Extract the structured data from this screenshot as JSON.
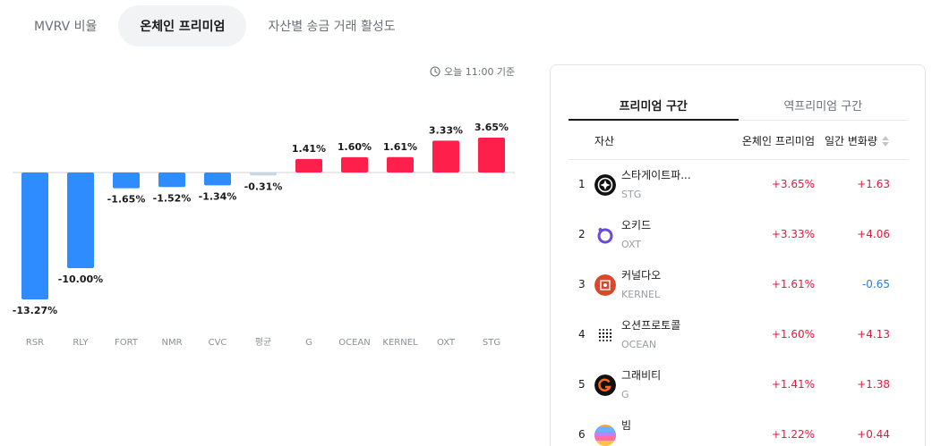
{
  "top_tabs": [
    {
      "label": "MVRV 비율"
    },
    {
      "label": "온체인 프리미엄"
    },
    {
      "label": "자산별 송금 거래 활성도"
    }
  ],
  "timestamp": "오늘 11:00 기준",
  "colors": {
    "positive": "#ff1f4b",
    "negative": "#2f8cff",
    "average": "#c9d6e3",
    "positive_text": "#e0193f",
    "negative_text": "#2a7fd8"
  },
  "chart_data": {
    "type": "bar",
    "categories": [
      "RSR",
      "RLY",
      "FORT",
      "NMR",
      "CVC",
      "평균",
      "G",
      "OCEAN",
      "KERNEL",
      "OXT",
      "STG"
    ],
    "values": [
      -13.27,
      -10.0,
      -1.65,
      -1.52,
      -1.34,
      -0.31,
      1.41,
      1.6,
      1.61,
      3.33,
      3.65
    ],
    "data_labels": [
      "-13.27%",
      "-10.00%",
      "-1.65%",
      "-1.52%",
      "-1.34%",
      "-0.31%",
      "1.41%",
      "1.60%",
      "1.61%",
      "3.33%",
      "3.65%"
    ],
    "ylim": [
      -14,
      4
    ],
    "title": "",
    "xlabel": "",
    "ylabel": ""
  },
  "panel": {
    "tabs": [
      {
        "label": "프리미엄 구간"
      },
      {
        "label": "역프리미엄 구간"
      }
    ],
    "headers": {
      "asset": "자산",
      "premium": "온체인 프리미엄",
      "change": "일간 변화량"
    },
    "rows": [
      {
        "rank": "1",
        "name": "스타게이트파...",
        "symbol": "STG",
        "premium": "+3.65%",
        "change": "+1.63",
        "change_dir": "up",
        "icon": "stargate-logo-icon"
      },
      {
        "rank": "2",
        "name": "오키드",
        "symbol": "OXT",
        "premium": "+3.33%",
        "change": "+4.06",
        "change_dir": "up",
        "icon": "orchid-logo-icon"
      },
      {
        "rank": "3",
        "name": "커널다오",
        "symbol": "KERNEL",
        "premium": "+1.61%",
        "change": "-0.65",
        "change_dir": "down",
        "icon": "kernel-logo-icon"
      },
      {
        "rank": "4",
        "name": "오션프로토콜",
        "symbol": "OCEAN",
        "premium": "+1.60%",
        "change": "+4.13",
        "change_dir": "up",
        "icon": "ocean-logo-icon"
      },
      {
        "rank": "5",
        "name": "그래비티",
        "symbol": "G",
        "premium": "+1.41%",
        "change": "+1.38",
        "change_dir": "up",
        "icon": "gravity-logo-icon"
      },
      {
        "rank": "6",
        "name": "빔",
        "symbol": "",
        "premium": "+1.22%",
        "change": "+0.44",
        "change_dir": "up",
        "icon": "beam-logo-icon"
      }
    ]
  }
}
